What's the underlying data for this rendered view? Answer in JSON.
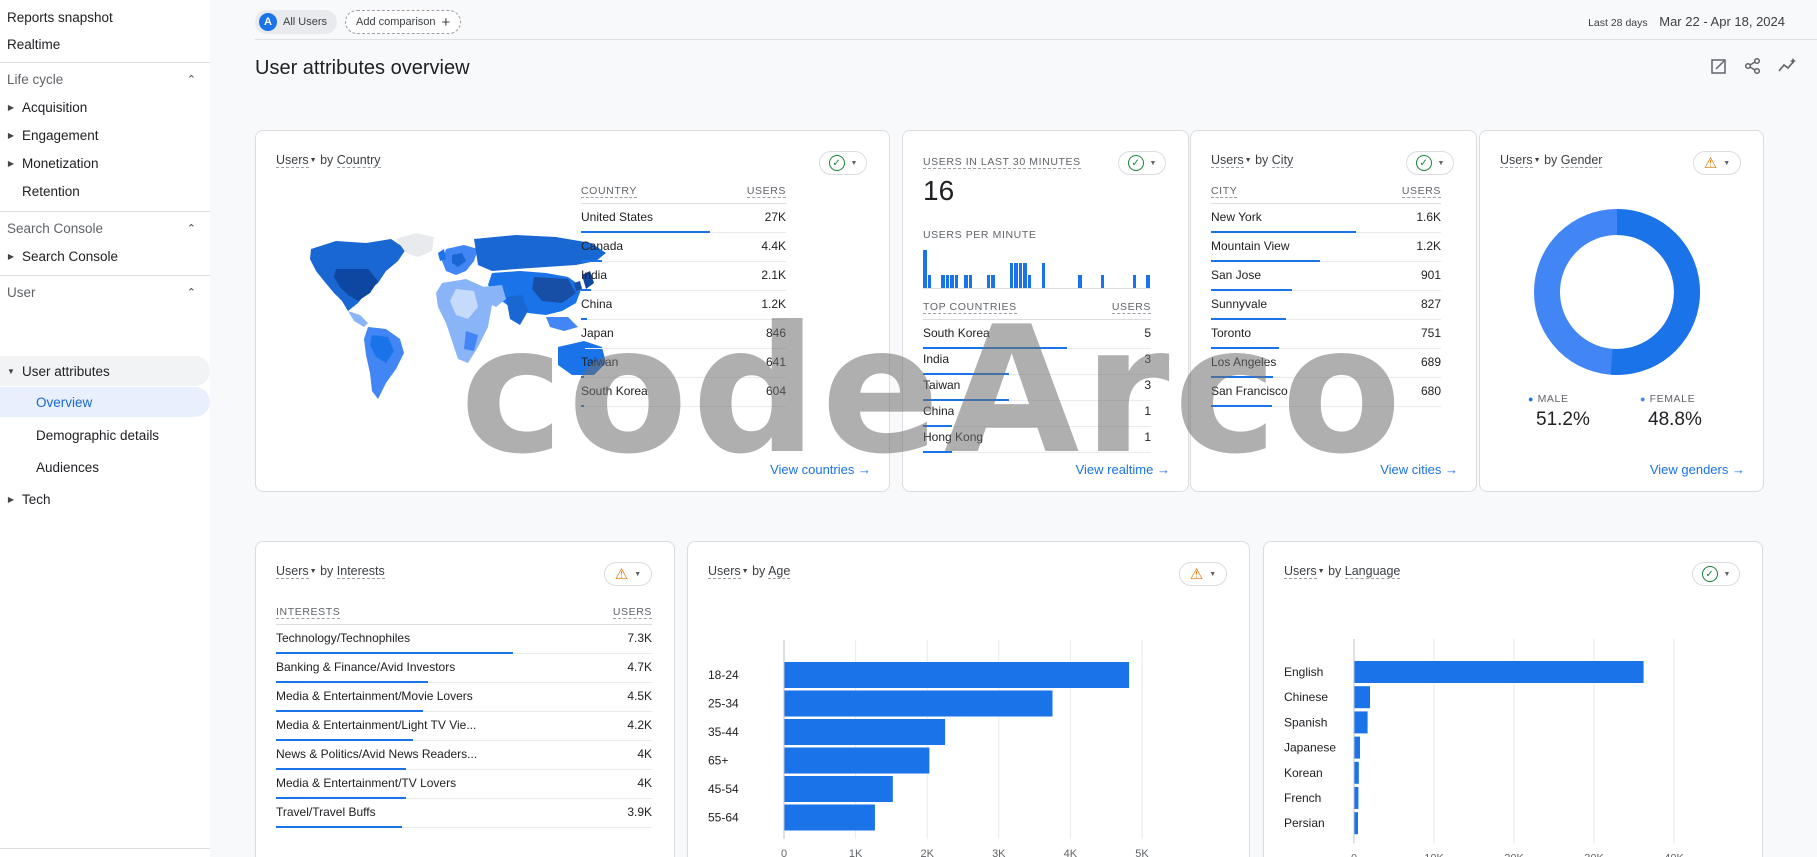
{
  "sidebar": {
    "top_items": [
      {
        "label": "Reports snapshot"
      },
      {
        "label": "Realtime"
      }
    ],
    "sections": [
      {
        "title": "Life cycle",
        "items": [
          "Acquisition",
          "Engagement",
          "Monetization",
          "Retention"
        ]
      },
      {
        "title": "Search Console",
        "items": [
          "Search Console"
        ]
      },
      {
        "title": "User",
        "group": "User attributes",
        "subitems": [
          "Overview",
          "Demographic details",
          "Audiences"
        ],
        "after": "Tech"
      }
    ]
  },
  "topbar": {
    "segment_badge": "A",
    "segment_label": "All Users",
    "add_comparison": "Add comparison",
    "date_label": "Last 28 days",
    "date_range": "Mar 22 - Apr 18, 2024"
  },
  "page_title": "User attributes overview",
  "common": {
    "metric": "Users"
  },
  "country_card": {
    "by": "by",
    "dimension": "Country",
    "col_dim": "COUNTRY",
    "col_val": "USERS",
    "rows": [
      {
        "name": "United States",
        "value": "27K",
        "frac": 1.0
      },
      {
        "name": "Canada",
        "value": "4.4K",
        "frac": 0.16
      },
      {
        "name": "India",
        "value": "2.1K",
        "frac": 0.08
      },
      {
        "name": "China",
        "value": "1.2K",
        "frac": 0.045
      },
      {
        "name": "Japan",
        "value": "846",
        "frac": 0.032
      },
      {
        "name": "Taiwan",
        "value": "641",
        "frac": 0.024
      },
      {
        "name": "South Korea",
        "value": "604",
        "frac": 0.022
      }
    ],
    "link": "View countries"
  },
  "realtime_card": {
    "label": "USERS IN LAST 30 MINUTES",
    "count": "16",
    "per_minute_label": "USERS PER MINUTE",
    "per_minute": [
      3,
      1,
      0,
      0,
      1,
      1,
      1,
      1,
      0,
      1,
      1,
      0,
      0,
      0,
      1,
      1,
      0,
      0,
      0,
      2,
      2,
      2,
      2,
      1,
      0,
      0,
      2,
      0,
      0,
      0,
      0,
      0,
      0,
      0,
      1,
      0,
      0,
      0,
      0,
      1,
      0,
      0,
      0,
      0,
      0,
      0,
      1,
      0,
      0,
      1
    ],
    "col_dim": "TOP COUNTRIES",
    "col_val": "USERS",
    "rows": [
      {
        "name": "South Korea",
        "value": "5",
        "frac": 1.0
      },
      {
        "name": "India",
        "value": "3",
        "frac": 0.6
      },
      {
        "name": "Taiwan",
        "value": "3",
        "frac": 0.6
      },
      {
        "name": "China",
        "value": "1",
        "frac": 0.2
      },
      {
        "name": "Hong Kong",
        "value": "1",
        "frac": 0.2
      }
    ],
    "link": "View realtime"
  },
  "city_card": {
    "by": "by",
    "dimension": "City",
    "col_dim": "CITY",
    "col_val": "USERS",
    "rows": [
      {
        "name": "New York",
        "value": "1.6K",
        "frac": 1.0
      },
      {
        "name": "Mountain View",
        "value": "1.2K",
        "frac": 0.75
      },
      {
        "name": "San Jose",
        "value": "901",
        "frac": 0.56
      },
      {
        "name": "Sunnyvale",
        "value": "827",
        "frac": 0.52
      },
      {
        "name": "Toronto",
        "value": "751",
        "frac": 0.47
      },
      {
        "name": "Los Angeles",
        "value": "689",
        "frac": 0.43
      },
      {
        "name": "San Francisco",
        "value": "680",
        "frac": 0.42
      }
    ],
    "link": "View cities"
  },
  "gender_card": {
    "by": "by",
    "dimension": "Gender",
    "male_label": "MALE",
    "male_value": "51.2%",
    "male_frac": 0.512,
    "female_label": "FEMALE",
    "female_value": "48.8%",
    "male_color": "#1a73e8",
    "female_color": "#4285f4",
    "link": "View genders"
  },
  "interests_card": {
    "by": "by",
    "dimension": "Interests",
    "col_dim": "INTERESTS",
    "col_val": "USERS",
    "rows": [
      {
        "name": "Technology/Technophiles",
        "value": "7.3K",
        "frac": 1.0
      },
      {
        "name": "Banking & Finance/Avid Investors",
        "value": "4.7K",
        "frac": 0.64
      },
      {
        "name": "Media & Entertainment/Movie Lovers",
        "value": "4.5K",
        "frac": 0.62
      },
      {
        "name": "Media & Entertainment/Light TV Vie...",
        "value": "4.2K",
        "frac": 0.58
      },
      {
        "name": "News & Politics/Avid News Readers...",
        "value": "4K",
        "frac": 0.55
      },
      {
        "name": "Media & Entertainment/TV Lovers",
        "value": "4K",
        "frac": 0.55
      },
      {
        "name": "Travel/Travel Buffs",
        "value": "3.9K",
        "frac": 0.53
      }
    ]
  },
  "age_card": {
    "by": "by",
    "dimension": "Age"
  },
  "language_card": {
    "by": "by",
    "dimension": "Language"
  },
  "chart_data": [
    {
      "type": "bar",
      "orientation": "horizontal",
      "title": "Users by Age",
      "categories": [
        "18-24",
        "25-34",
        "35-44",
        "65+",
        "45-54",
        "55-64"
      ],
      "values": [
        4820,
        3750,
        2250,
        2030,
        1520,
        1270
      ],
      "xticks": [
        "0",
        "1K",
        "2K",
        "3K",
        "4K",
        "5K"
      ],
      "xlim": [
        0,
        5000
      ],
      "grid": true,
      "color": "#1a73e8"
    },
    {
      "type": "bar",
      "orientation": "horizontal",
      "title": "Users by Language",
      "categories": [
        "English",
        "Chinese",
        "Spanish",
        "Japanese",
        "Korean",
        "French",
        "Persian"
      ],
      "values": [
        36200,
        2000,
        1700,
        750,
        600,
        550,
        500
      ],
      "xticks": [
        "0",
        "10K",
        "20K",
        "30K",
        "40K"
      ],
      "xlim": [
        0,
        40000
      ],
      "grid": true,
      "color": "#1a73e8"
    }
  ],
  "watermark": "codeArco"
}
